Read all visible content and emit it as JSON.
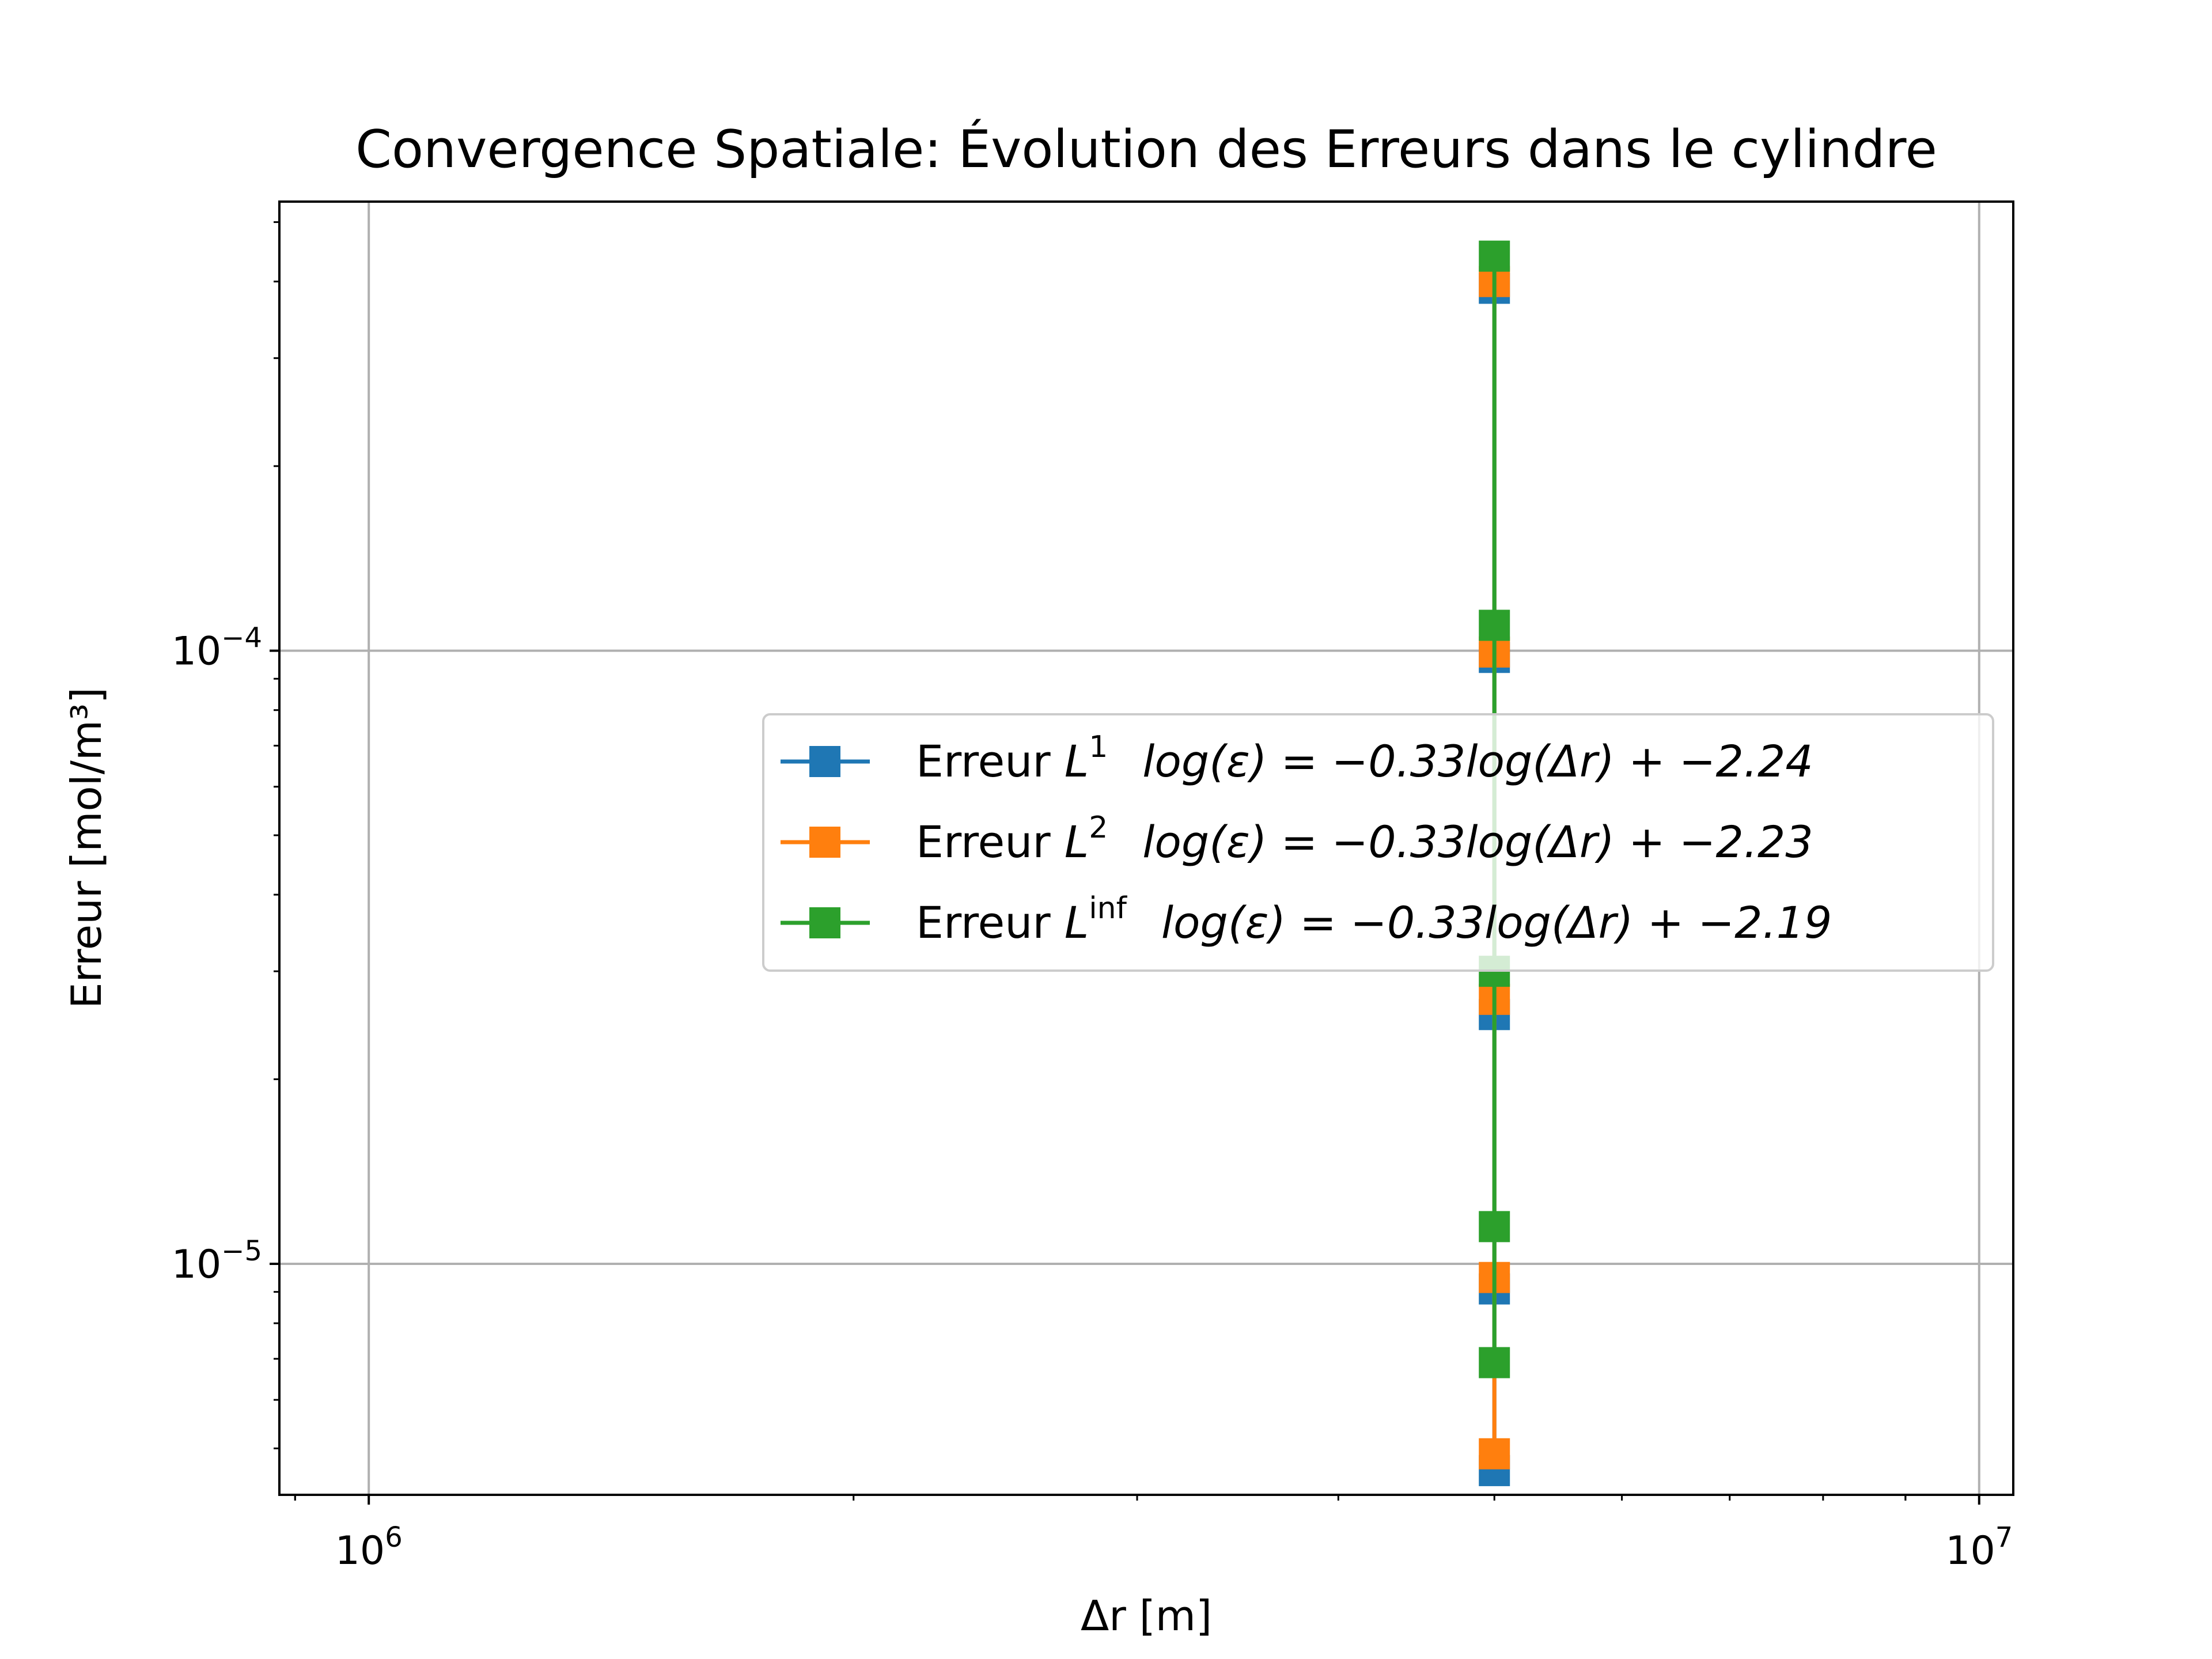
{
  "chart_data": {
    "type": "line",
    "title": "Convergence Spatiale: Évolution des Erreurs dans le cylindre",
    "xlabel": "Δr [m]",
    "ylabel": "Erreur [mol/m³]",
    "xscale": "log",
    "yscale": "log",
    "xlim": [
      880000,
      10500000
    ],
    "ylim": [
      4.2e-06,
      0.00054
    ],
    "x_ticks": [
      {
        "value": 1000000,
        "base": "10",
        "exp": "6"
      },
      {
        "value": 10000000,
        "base": "10",
        "exp": "7"
      }
    ],
    "y_ticks": [
      {
        "value": 1e-05,
        "base": "10",
        "exp": "−5"
      },
      {
        "value": 0.0001,
        "base": "10",
        "exp": "−4"
      }
    ],
    "grid": true,
    "legend_position": "center-right",
    "series": [
      {
        "name": "Erreur L1",
        "legend_prefix": "Erreur ",
        "legend_sup": "1",
        "legend_formula": "log(ε) = −0.33log(Δr) + −2.24",
        "color": "#1f77b4",
        "marker": "square",
        "x": [
          5000000,
          5000000,
          5000000,
          5000000,
          5000000
        ],
        "y": [
          0.00039,
          9.75e-05,
          2.55e-05,
          9.1e-06,
          4.6e-06
        ]
      },
      {
        "name": "Erreur L2",
        "legend_prefix": "Erreur ",
        "legend_sup": "2",
        "legend_formula": "log(ε) = −0.33log(Δr) + −2.23",
        "color": "#ff7f0e",
        "marker": "square",
        "x": [
          5000000,
          5000000,
          5000000,
          5000000,
          5000000
        ],
        "y": [
          0.0004,
          9.95e-05,
          2.7e-05,
          9.5e-06,
          4.9e-06
        ]
      },
      {
        "name": "Erreur Linf",
        "legend_prefix": "Erreur ",
        "legend_sup": "inf",
        "legend_formula": "log(ε) = −0.33log(Δr) + −2.19",
        "color": "#2ca02c",
        "marker": "square",
        "x": [
          5000000,
          5000000,
          5000000,
          5000000,
          5000000
        ],
        "y": [
          0.00044,
          0.00011,
          3e-05,
          1.15e-05,
          6.9e-06
        ]
      }
    ]
  }
}
